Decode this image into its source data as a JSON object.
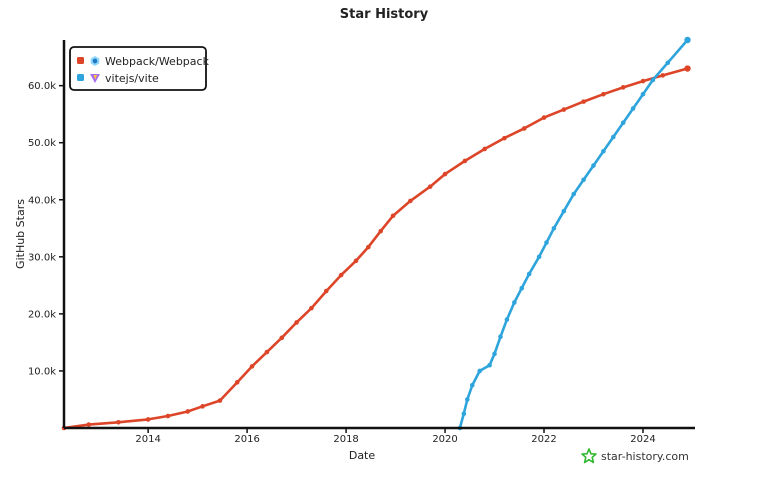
{
  "chart_data": {
    "type": "line",
    "title": "Star History",
    "xlabel": "Date",
    "ylabel": "GitHub Stars",
    "x_range": [
      2012.3,
      2024.95
    ],
    "ylim": [
      0,
      68000
    ],
    "x_ticks": [
      {
        "value": 2014,
        "label": "2014"
      },
      {
        "value": 2016,
        "label": "2016"
      },
      {
        "value": 2018,
        "label": "2018"
      },
      {
        "value": 2020,
        "label": "2020"
      },
      {
        "value": 2022,
        "label": "2022"
      },
      {
        "value": 2024,
        "label": "2024"
      }
    ],
    "y_ticks": [
      {
        "value": 10000,
        "label": "10.0k"
      },
      {
        "value": 20000,
        "label": "20.0k"
      },
      {
        "value": 30000,
        "label": "30.0k"
      },
      {
        "value": 40000,
        "label": "40.0k"
      },
      {
        "value": 50000,
        "label": "50.0k"
      },
      {
        "value": 60000,
        "label": "60.0k"
      }
    ],
    "grid": false,
    "legend_position": "top-left",
    "series": [
      {
        "name": "Webpack/Webpack",
        "color": "#dd4528",
        "marker": "webpack-logo-icon",
        "points": [
          [
            2012.3,
            0
          ],
          [
            2012.8,
            600
          ],
          [
            2013.4,
            1000
          ],
          [
            2014.0,
            1500
          ],
          [
            2014.4,
            2100
          ],
          [
            2014.8,
            2900
          ],
          [
            2015.1,
            3800
          ],
          [
            2015.45,
            4800
          ],
          [
            2015.8,
            8000
          ],
          [
            2016.1,
            10800
          ],
          [
            2016.4,
            13300
          ],
          [
            2016.7,
            15800
          ],
          [
            2017.0,
            18500
          ],
          [
            2017.3,
            21000
          ],
          [
            2017.6,
            24000
          ],
          [
            2017.9,
            26800
          ],
          [
            2018.2,
            29300
          ],
          [
            2018.45,
            31700
          ],
          [
            2018.7,
            34500
          ],
          [
            2018.95,
            37200
          ],
          [
            2019.3,
            39800
          ],
          [
            2019.7,
            42300
          ],
          [
            2020.0,
            44500
          ],
          [
            2020.4,
            46800
          ],
          [
            2020.8,
            48900
          ],
          [
            2021.2,
            50800
          ],
          [
            2021.6,
            52500
          ],
          [
            2022.0,
            54400
          ],
          [
            2022.4,
            55800
          ],
          [
            2022.8,
            57200
          ],
          [
            2023.2,
            58500
          ],
          [
            2023.6,
            59700
          ],
          [
            2024.0,
            60800
          ],
          [
            2024.4,
            61800
          ],
          [
            2024.9,
            63000
          ]
        ]
      },
      {
        "name": "vitejs/vite",
        "color": "#2ea4dc",
        "marker": "vite-logo-icon",
        "points": [
          [
            2020.3,
            0
          ],
          [
            2020.38,
            2500
          ],
          [
            2020.45,
            5000
          ],
          [
            2020.55,
            7500
          ],
          [
            2020.7,
            10000
          ],
          [
            2020.9,
            11000
          ],
          [
            2021.0,
            13000
          ],
          [
            2021.12,
            16000
          ],
          [
            2021.25,
            19000
          ],
          [
            2021.4,
            22000
          ],
          [
            2021.55,
            24500
          ],
          [
            2021.7,
            27000
          ],
          [
            2021.9,
            30000
          ],
          [
            2022.05,
            32500
          ],
          [
            2022.2,
            35000
          ],
          [
            2022.4,
            38000
          ],
          [
            2022.6,
            41000
          ],
          [
            2022.8,
            43500
          ],
          [
            2023.0,
            46000
          ],
          [
            2023.2,
            48500
          ],
          [
            2023.4,
            51000
          ],
          [
            2023.6,
            53500
          ],
          [
            2023.8,
            56000
          ],
          [
            2024.0,
            58500
          ],
          [
            2024.2,
            61000
          ],
          [
            2024.5,
            64000
          ],
          [
            2024.9,
            68000
          ]
        ]
      }
    ]
  },
  "watermark": {
    "text": "star-history.com",
    "icon": "star-outline-icon",
    "color": "#2fb82f"
  }
}
